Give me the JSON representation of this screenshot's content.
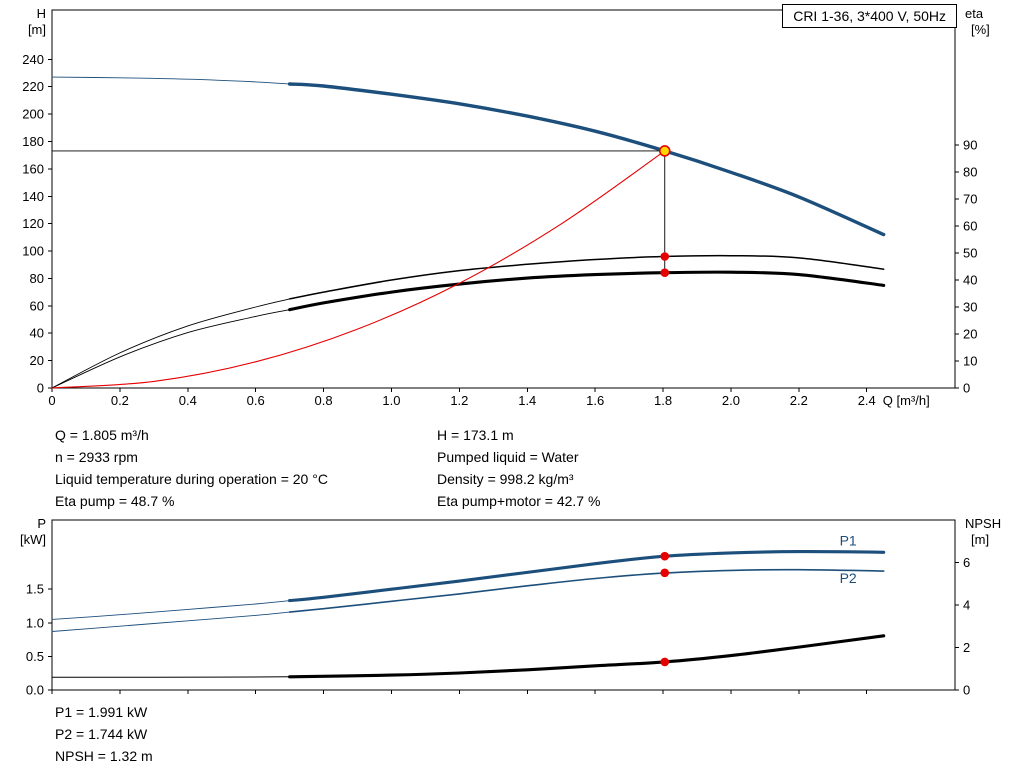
{
  "colors": {
    "blue": "#1d4f7c",
    "black": "#000000",
    "red": "#e60000",
    "duty_fill": "#ffd700",
    "axis": "#000000",
    "text": "#000000"
  },
  "duty_text": {
    "left": [
      "Q = 1.805 m³/h",
      "n = 2933 rpm",
      "Liquid temperature during operation = 20 °C",
      "Eta pump = 48.7 %"
    ],
    "right": [
      "H = 173.1 m",
      "Pumped liquid = Water",
      "Density = 998.2 kg/m³",
      "Eta pump+motor = 42.7 %"
    ]
  },
  "power_text": [
    "P1 = 1.991 kW",
    "P2 = 1.744 kW",
    "NPSH = 1.32 m"
  ],
  "chart_data": [
    {
      "type": "line",
      "title": "CRI 1-36, 3*400 V, 50Hz",
      "x_axis": {
        "label": "Q [m³/h]",
        "min": 0,
        "max": 2.66,
        "tick_step": 0.2,
        "tick_last": 2.4,
        "decimals": 1,
        "zero": "0"
      },
      "y_left": {
        "name": "H",
        "unit": "[m]",
        "min": 0,
        "max": 276,
        "tick_step": 20,
        "tick_last": 240,
        "decimals": 0
      },
      "y_right": {
        "name": "eta",
        "unit": "[%]",
        "min": 0,
        "max": 140,
        "tick_step": 10,
        "tick_last": 90,
        "decimals": 0
      },
      "series": [
        {
          "name": "QH curve",
          "axis": "left",
          "color": "blue",
          "split_q": 0.7,
          "q": [
            0,
            0.2,
            0.4,
            0.6,
            0.7,
            0.8,
            1.0,
            1.2,
            1.4,
            1.6,
            1.8,
            2.0,
            2.2,
            2.45
          ],
          "v": [
            227,
            226.5,
            225.5,
            223.5,
            222,
            220.5,
            214.5,
            207.5,
            198.5,
            187.5,
            173.5,
            157.5,
            139.5,
            112
          ]
        },
        {
          "name": "Eta pump",
          "axis": "right",
          "color": "black",
          "split_q": 0.7,
          "q": [
            0,
            0.2,
            0.4,
            0.6,
            0.7,
            0.8,
            1.0,
            1.2,
            1.4,
            1.6,
            1.8,
            2.0,
            2.2,
            2.45
          ],
          "v": [
            0,
            13,
            23,
            30,
            33,
            35.5,
            40,
            43.5,
            45.8,
            47.6,
            48.7,
            49.0,
            48.2,
            44
          ]
        },
        {
          "name": "Eta pump plus motor",
          "axis": "right",
          "color": "black",
          "split_q": 0.7,
          "q": [
            0,
            0.2,
            0.4,
            0.6,
            0.7,
            0.8,
            1.0,
            1.2,
            1.4,
            1.6,
            1.8,
            2.0,
            2.2,
            2.45
          ],
          "v": [
            0,
            11.5,
            20.5,
            26.5,
            29,
            31.5,
            35.5,
            38.5,
            40.7,
            42.0,
            42.7,
            42.9,
            42.0,
            38
          ]
        },
        {
          "name": "Operating curve",
          "axis": "left",
          "color": "red",
          "split_q": null,
          "q": [
            0,
            0.3,
            0.6,
            0.9,
            1.2,
            1.5,
            1.805
          ],
          "v": [
            0,
            4.8,
            19.1,
            43,
            76.5,
            119.8,
            173.1
          ]
        }
      ],
      "duty_point": {
        "q": 1.805,
        "h": 173.1
      },
      "markers": [
        {
          "q": 1.805,
          "v": 173.1,
          "axis": "left",
          "style": "duty"
        },
        {
          "q": 1.805,
          "v": 48.7,
          "axis": "right",
          "style": "red"
        },
        {
          "q": 1.805,
          "v": 42.7,
          "axis": "right",
          "style": "red"
        }
      ]
    },
    {
      "type": "line",
      "x_axis": {
        "label": "",
        "min": 0,
        "max": 2.66,
        "tick_step": 0.2,
        "tick_last": 2.4,
        "decimals": 1,
        "zero": "0",
        "show_labels": false
      },
      "y_left": {
        "name": "P",
        "unit": "[kW]",
        "min": 0,
        "max": 2.53,
        "tick_step": 0.5,
        "tick_last": 1.5,
        "decimals": 1
      },
      "y_right": {
        "name": "NPSH",
        "unit": "[m]",
        "min": 0,
        "max": 8,
        "tick_step": 2,
        "tick_last": 6,
        "decimals": 0
      },
      "series": [
        {
          "name": "P1 input power",
          "axis": "left",
          "color": "blue",
          "split_q": 0.7,
          "q": [
            0,
            0.2,
            0.4,
            0.6,
            0.7,
            0.8,
            1.0,
            1.2,
            1.4,
            1.6,
            1.8,
            2.0,
            2.2,
            2.45
          ],
          "v": [
            1.05,
            1.12,
            1.2,
            1.28,
            1.33,
            1.38,
            1.5,
            1.62,
            1.75,
            1.88,
            1.99,
            2.04,
            2.06,
            2.05
          ]
        },
        {
          "name": "P2 shaft power",
          "axis": "left",
          "color": "blue",
          "split_q": 0.7,
          "q": [
            0,
            0.2,
            0.4,
            0.6,
            0.7,
            0.8,
            1.0,
            1.2,
            1.4,
            1.6,
            1.8,
            2.0,
            2.2,
            2.45
          ],
          "v": [
            0.87,
            0.95,
            1.03,
            1.11,
            1.16,
            1.21,
            1.32,
            1.43,
            1.55,
            1.66,
            1.74,
            1.78,
            1.79,
            1.77
          ]
        },
        {
          "name": "NPSH",
          "axis": "right",
          "color": "black",
          "split_q": 0.7,
          "q": [
            0,
            0.3,
            0.7,
            1.0,
            1.2,
            1.4,
            1.6,
            1.805,
            2.0,
            2.2,
            2.45
          ],
          "v": [
            0.6,
            0.6,
            0.62,
            0.7,
            0.8,
            0.95,
            1.14,
            1.32,
            1.62,
            2.02,
            2.55
          ]
        }
      ],
      "labels": [
        {
          "text": "P1",
          "q": 2.32,
          "v": 2.15,
          "axis": "left",
          "color": "blue"
        },
        {
          "text": "P2",
          "q": 2.32,
          "v": 1.59,
          "axis": "left",
          "color": "blue"
        }
      ],
      "markers": [
        {
          "q": 1.805,
          "v": 1.991,
          "axis": "left",
          "style": "red"
        },
        {
          "q": 1.805,
          "v": 1.744,
          "axis": "left",
          "style": "red"
        },
        {
          "q": 1.805,
          "v": 1.32,
          "axis": "right",
          "style": "red"
        }
      ]
    }
  ]
}
